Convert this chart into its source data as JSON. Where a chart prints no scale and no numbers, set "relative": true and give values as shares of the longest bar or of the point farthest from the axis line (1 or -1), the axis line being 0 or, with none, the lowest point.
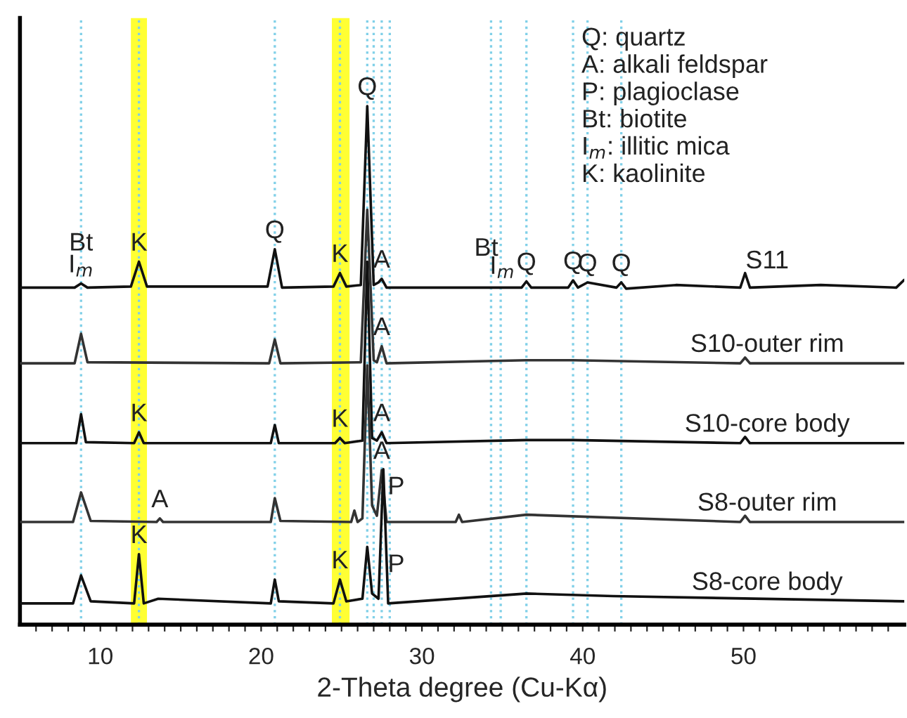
{
  "chart_data": {
    "type": "line",
    "relative": true,
    "xlabel": "2-Theta degree (Cu-Kα)",
    "xlim": [
      5,
      60
    ],
    "xticks": [
      {
        "value": 6,
        "label": null
      },
      {
        "value": 7,
        "label": null
      },
      {
        "value": 8,
        "label": null
      },
      {
        "value": 9,
        "label": null
      },
      10,
      {
        "value": 11,
        "label": null
      },
      {
        "value": 12,
        "label": null
      },
      {
        "value": 13,
        "label": null
      },
      {
        "value": 14,
        "label": null
      },
      {
        "value": 15,
        "label": null
      },
      {
        "value": 16,
        "label": null
      },
      {
        "value": 17,
        "label": null
      },
      {
        "value": 18,
        "label": null
      },
      {
        "value": 19,
        "label": null
      },
      20,
      {
        "value": 21,
        "label": null
      },
      {
        "value": 22,
        "label": null
      },
      {
        "value": 23,
        "label": null
      },
      {
        "value": 24,
        "label": null
      },
      {
        "value": 25,
        "label": null
      },
      {
        "value": 26,
        "label": null
      },
      {
        "value": 27,
        "label": null
      },
      {
        "value": 28,
        "label": null
      },
      {
        "value": 29,
        "label": null
      },
      30,
      {
        "value": 31,
        "label": null
      },
      {
        "value": 32,
        "label": null
      },
      {
        "value": 33,
        "label": null
      },
      {
        "value": 34,
        "label": null
      },
      {
        "value": 35,
        "label": null
      },
      {
        "value": 36,
        "label": null
      },
      {
        "value": 37,
        "label": null
      },
      {
        "value": 38,
        "label": null
      },
      {
        "value": 39,
        "label": null
      },
      40,
      {
        "value": 41,
        "label": null
      },
      {
        "value": 42,
        "label": null
      },
      {
        "value": 43,
        "label": null
      },
      {
        "value": 44,
        "label": null
      },
      {
        "value": 45,
        "label": null
      },
      {
        "value": 46,
        "label": null
      },
      {
        "value": 47,
        "label": null
      },
      {
        "value": 48,
        "label": null
      },
      {
        "value": 49,
        "label": null
      },
      50,
      {
        "value": 51,
        "label": null
      },
      {
        "value": 52,
        "label": null
      },
      {
        "value": 53,
        "label": null
      },
      {
        "value": 54,
        "label": null
      },
      {
        "value": 55,
        "label": null
      },
      {
        "value": 56,
        "label": null
      },
      {
        "value": 57,
        "label": null
      },
      {
        "value": 58,
        "label": null
      },
      {
        "value": 59,
        "label": null
      }
    ],
    "line_style": "solid",
    "series": [
      {
        "name": "S11",
        "color": "#111111",
        "x": [
          5,
          8.4,
          8.8,
          9.2,
          11.9,
          12.4,
          12.9,
          20.4,
          20.85,
          21.3,
          24.5,
          24.9,
          25.3,
          26.2,
          26.6,
          27.0,
          27.3,
          27.5,
          27.8,
          36.2,
          36.5,
          36.8,
          39.1,
          39.4,
          39.7,
          40.3,
          42.1,
          42.4,
          42.7,
          45.8,
          49.8,
          50.1,
          50.4,
          54.8,
          59.5,
          60
        ],
        "values": [
          0.65,
          0.65,
          0.658,
          0.65,
          0.652,
          0.7,
          0.652,
          0.652,
          0.724,
          0.65,
          0.652,
          0.678,
          0.652,
          0.655,
          1.0,
          0.655,
          0.66,
          0.667,
          0.65,
          0.65,
          0.662,
          0.65,
          0.65,
          0.664,
          0.65,
          0.66,
          0.65,
          0.66,
          0.648,
          0.655,
          0.65,
          0.678,
          0.65,
          0.655,
          0.65,
          0.665
        ]
      },
      {
        "name": "S10-outer rim",
        "color": "#333333",
        "x": [
          5,
          8.4,
          8.8,
          9.2,
          20.5,
          20.85,
          21.2,
          26.2,
          26.6,
          27.0,
          27.2,
          27.5,
          27.8,
          36.5,
          39.4,
          49.8,
          50.1,
          50.4,
          60
        ],
        "values": [
          0.504,
          0.504,
          0.561,
          0.506,
          0.504,
          0.55,
          0.504,
          0.506,
          0.8,
          0.51,
          0.506,
          0.537,
          0.504,
          0.51,
          0.51,
          0.504,
          0.515,
          0.504,
          0.504
        ]
      },
      {
        "name": "S10-core body",
        "color": "#111111",
        "x": [
          5,
          8.5,
          8.8,
          9.1,
          12.1,
          12.4,
          12.7,
          20.6,
          20.85,
          21.1,
          24.6,
          24.9,
          25.2,
          26.3,
          26.6,
          26.9,
          27.2,
          27.5,
          27.8,
          36.5,
          39.4,
          49.8,
          50.1,
          50.4,
          60
        ],
        "values": [
          0.35,
          0.35,
          0.406,
          0.352,
          0.35,
          0.371,
          0.35,
          0.35,
          0.385,
          0.35,
          0.35,
          0.36,
          0.35,
          0.355,
          0.7,
          0.36,
          0.355,
          0.371,
          0.35,
          0.356,
          0.356,
          0.35,
          0.362,
          0.35,
          0.35
        ]
      },
      {
        "name": "S8-outer rim",
        "color": "#333333",
        "x": [
          5,
          8.3,
          8.8,
          9.4,
          13.5,
          13.7,
          13.9,
          20.6,
          20.85,
          21.2,
          25.6,
          25.8,
          26.0,
          26.3,
          26.6,
          26.9,
          27.2,
          27.5,
          27.8,
          32.1,
          32.3,
          32.5,
          36.5,
          49.8,
          50.1,
          50.4,
          60
        ],
        "values": [
          0.198,
          0.198,
          0.255,
          0.2,
          0.198,
          0.205,
          0.198,
          0.198,
          0.244,
          0.2,
          0.198,
          0.22,
          0.198,
          0.205,
          0.5,
          0.23,
          0.21,
          0.298,
          0.198,
          0.198,
          0.212,
          0.198,
          0.212,
          0.198,
          0.21,
          0.198,
          0.198
        ]
      },
      {
        "name": "S8-core body",
        "color": "#111111",
        "x": [
          5,
          8.3,
          8.8,
          9.4,
          12.1,
          12.4,
          12.7,
          13.6,
          20.6,
          20.85,
          21.1,
          24.5,
          24.9,
          25.3,
          26.3,
          26.6,
          26.9,
          27.3,
          27.6,
          27.9,
          36.5,
          41.9,
          60
        ],
        "values": [
          0.041,
          0.041,
          0.095,
          0.045,
          0.041,
          0.136,
          0.041,
          0.05,
          0.041,
          0.087,
          0.045,
          0.041,
          0.087,
          0.045,
          0.05,
          0.15,
          0.06,
          0.05,
          0.3,
          0.041,
          0.06,
          0.055,
          0.045
        ]
      }
    ],
    "bands": [
      {
        "axis": "x",
        "from": 11.9,
        "to": 12.9,
        "color": "#ffff33"
      },
      {
        "axis": "x",
        "from": 24.4,
        "to": 25.5,
        "color": "#ffff33"
      }
    ],
    "ref_lines": [
      {
        "axis": "x",
        "value": 8.8,
        "color": "#80d0e8",
        "line_style": "dotted"
      },
      {
        "axis": "x",
        "value": 12.4,
        "color": "#80d0e8",
        "line_style": "dotted"
      },
      {
        "axis": "x",
        "value": 20.85,
        "color": "#80d0e8",
        "line_style": "dotted"
      },
      {
        "axis": "x",
        "value": 24.9,
        "color": "#80d0e8",
        "line_style": "dotted"
      },
      {
        "axis": "x",
        "value": 26.6,
        "color": "#80d0e8",
        "line_style": "dotted"
      },
      {
        "axis": "x",
        "value": 27.0,
        "color": "#80d0e8",
        "line_style": "dotted"
      },
      {
        "axis": "x",
        "value": 27.5,
        "color": "#80d0e8",
        "line_style": "dotted"
      },
      {
        "axis": "x",
        "value": 28.0,
        "color": "#80d0e8",
        "line_style": "dotted"
      },
      {
        "axis": "x",
        "value": 34.3,
        "color": "#80d0e8",
        "line_style": "dotted"
      },
      {
        "axis": "x",
        "value": 34.9,
        "color": "#80d0e8",
        "line_style": "dotted"
      },
      {
        "axis": "x",
        "value": 36.5,
        "color": "#80d0e8",
        "line_style": "dotted"
      },
      {
        "axis": "x",
        "value": 39.4,
        "color": "#80d0e8",
        "line_style": "dotted"
      },
      {
        "axis": "x",
        "value": 40.3,
        "color": "#80d0e8",
        "line_style": "dotted"
      },
      {
        "axis": "x",
        "value": 42.4,
        "color": "#80d0e8",
        "line_style": "dotted"
      }
    ],
    "annotations": [
      "Q: quartz",
      "A: alkali feldspar",
      "P: plagioclase",
      "Bt: biotite",
      "I$_{m}$: illitic mica",
      "K: kaolinite",
      {
        "text": "Bt\nI$_{m}$",
        "x": 8.8,
        "y": 0.658
      },
      {
        "text": "K",
        "x": 12.4,
        "y": 0.7
      },
      {
        "text": "Q",
        "x": 20.85,
        "y": 0.724
      },
      {
        "text": "K",
        "x": 24.9,
        "y": 0.678
      },
      {
        "text": "Q",
        "x": 26.6,
        "y": 1.0
      },
      {
        "text": "A",
        "x": 27.5,
        "y": 0.667
      },
      {
        "text": "Bt",
        "x": 34.0,
        "y": 0.69
      },
      {
        "text": "I$_{m}$",
        "x": 35.0,
        "y": 0.655
      },
      {
        "text": "Q",
        "x": 36.5,
        "y": 0.662
      },
      {
        "text": "Q",
        "x": 39.4,
        "y": 0.664
      },
      {
        "text": "Q",
        "x": 40.3,
        "y": 0.66
      },
      {
        "text": "Q",
        "x": 42.4,
        "y": 0.66
      },
      {
        "text": "A",
        "x": 27.5,
        "y": 0.537
      },
      {
        "text": "K",
        "x": 12.4,
        "y": 0.371
      },
      {
        "text": "K",
        "x": 24.9,
        "y": 0.36
      },
      {
        "text": "A",
        "x": 27.5,
        "y": 0.371
      },
      {
        "text": "A",
        "x": 13.7,
        "y": 0.205
      },
      {
        "text": "A",
        "x": 27.5,
        "y": 0.298
      },
      {
        "text": "P",
        "x": 28.4,
        "y": 0.23
      },
      {
        "text": "K",
        "x": 12.4,
        "y": 0.136
      },
      {
        "text": "K",
        "x": 24.9,
        "y": 0.087
      },
      {
        "text": "P",
        "x": 28.4,
        "y": 0.08
      }
    ]
  }
}
